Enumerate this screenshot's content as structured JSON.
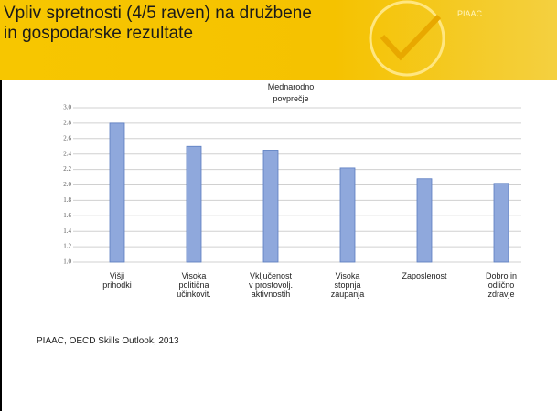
{
  "header": {
    "title": "Vpliv spretnosti (4/5 raven) na družbene\nin gospodarske rezultate",
    "logo": "PIAAC"
  },
  "chart_data": {
    "type": "bar",
    "annotation": "Mednarodno\npovprečje",
    "categories": [
      "Višji\nprihodki",
      "Visoka\npolitična\nučinkovit.",
      "Vključenost\nv prostovolj.\naktivnostih",
      "Visoka\nstopnja\nzaupanja",
      "Zaposlenost",
      "Dobro in\nodlično\nzdravje"
    ],
    "values": [
      2.8,
      2.5,
      2.45,
      2.22,
      2.08,
      2.02
    ],
    "color": "#8fa8dc",
    "ylim": [
      1.0,
      3.0
    ],
    "yticks": [
      {
        "value": 1.0,
        "label": "1.0"
      },
      1.2,
      1.4,
      1.6,
      1.8,
      {
        "value": 2.0,
        "label": "2.0"
      },
      2.2,
      2.4,
      2.6,
      2.8,
      {
        "value": 3.0,
        "label": "3.0"
      }
    ],
    "grid": true
  },
  "source": "PIAAC, OECD Skills Outlook, 2013"
}
